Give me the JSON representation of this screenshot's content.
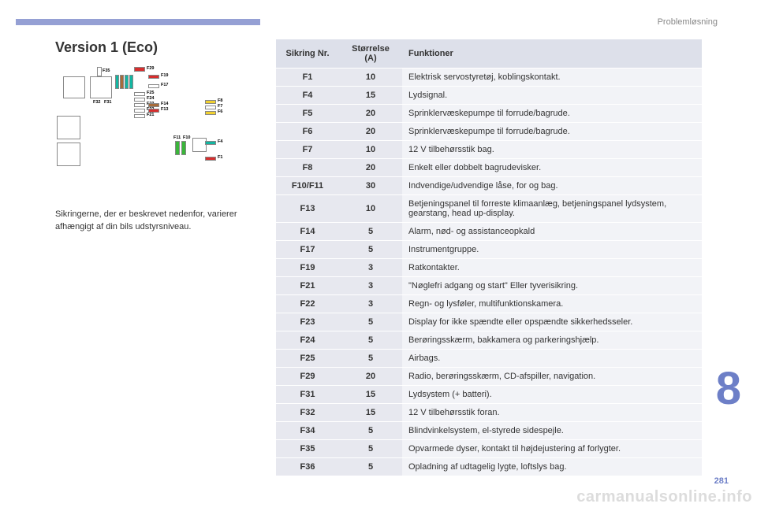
{
  "breadcrumb": "Problemløsning",
  "title": "Version 1 (Eco)",
  "body_text": "Sikringerne, der er beskrevet nedenfor, varierer afhængigt af din bils udstyrsniveau.",
  "section_number": "8",
  "page_number": "281",
  "watermark": "carmanualsonline.info",
  "table": {
    "header": {
      "c1": "Sikring Nr.",
      "c2": "Størrelse (A)",
      "c3": "Funktioner"
    },
    "rows": [
      {
        "c1": "F1",
        "c2": "10",
        "c3": "Elektrisk servostyretøj, koblingskontakt."
      },
      {
        "c1": "F4",
        "c2": "15",
        "c3": "Lydsignal."
      },
      {
        "c1": "F5",
        "c2": "20",
        "c3": "Sprinklervæskepumpe til forrude/bagrude."
      },
      {
        "c1": "F6",
        "c2": "20",
        "c3": "Sprinklervæskepumpe til forrude/bagrude."
      },
      {
        "c1": "F7",
        "c2": "10",
        "c3": "12 V tilbehørsstik bag."
      },
      {
        "c1": "F8",
        "c2": "20",
        "c3": "Enkelt eller dobbelt bagrudevisker."
      },
      {
        "c1": "F10/F11",
        "c2": "30",
        "c3": "Indvendige/udvendige låse, for og bag."
      },
      {
        "c1": "F13",
        "c2": "10",
        "c3": "Betjeningspanel til forreste klimaanlæg, betjeningspanel lydsystem, gearstang, head up-display."
      },
      {
        "c1": "F14",
        "c2": "5",
        "c3": "Alarm, nød- og assistanceopkald"
      },
      {
        "c1": "F17",
        "c2": "5",
        "c3": "Instrumentgruppe."
      },
      {
        "c1": "F19",
        "c2": "3",
        "c3": "Ratkontakter."
      },
      {
        "c1": "F21",
        "c2": "3",
        "c3": "\"Nøglefri adgang og start\" Eller tyverisikring."
      },
      {
        "c1": "F22",
        "c2": "3",
        "c3": "Regn- og lysføler, multifunktionskamera."
      },
      {
        "c1": "F23",
        "c2": "5",
        "c3": "Display for ikke spændte eller opspændte sikkerhedsseler."
      },
      {
        "c1": "F24",
        "c2": "5",
        "c3": "Berøringsskærm, bakkamera og parkeringshjælp."
      },
      {
        "c1": "F25",
        "c2": "5",
        "c3": "Airbags."
      },
      {
        "c1": "F29",
        "c2": "20",
        "c3": "Radio, berøringsskærm, CD-afspiller, navigation."
      },
      {
        "c1": "F31",
        "c2": "15",
        "c3": "Lydsystem (+ batteri)."
      },
      {
        "c1": "F32",
        "c2": "15",
        "c3": "12 V tilbehørsstik foran."
      },
      {
        "c1": "F34",
        "c2": "5",
        "c3": "Blindvinkelsystem, el-styrede sidespejle."
      },
      {
        "c1": "F35",
        "c2": "5",
        "c3": "Opvarmede dyser, kontakt til højdejustering af forlygter."
      },
      {
        "c1": "F36",
        "c2": "5",
        "c3": "Opladning af udtagelig lygte, loftslys bag."
      }
    ]
  },
  "diagram": {
    "labels": {
      "F35": "F35",
      "F29": "F29",
      "F19": "F19",
      "F17": "F17",
      "F25": "F25",
      "F24": "F24",
      "F23": "F23",
      "F14": "F14",
      "F22": "F22",
      "F13": "F13",
      "F21": "F21",
      "F32": "F32",
      "F31": "F31",
      "F11": "F11",
      "F10": "F10",
      "F8": "F8",
      "F7": "F7",
      "F6": "F6",
      "F4": "F4",
      "F1": "F1"
    },
    "colors": {
      "red": "#d62e2e",
      "yellow": "#f0d030",
      "teal": "#13b5a1",
      "brown": "#a76b3a",
      "green": "#3ab53a",
      "white": "#ffffff",
      "gray": "#888888"
    }
  }
}
